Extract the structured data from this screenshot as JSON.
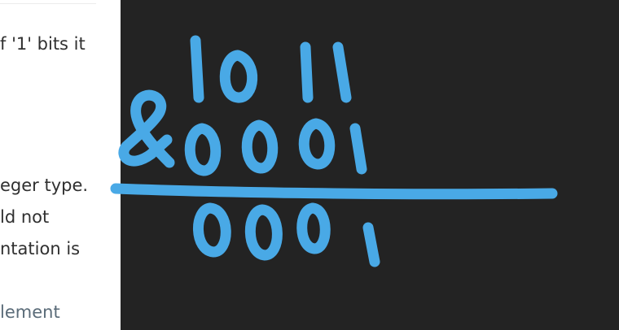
{
  "document": {
    "lines": [
      "f '1' bits it",
      "eger type.",
      "ld not",
      "ntation is",
      "lement"
    ]
  },
  "whiteboard": {
    "operand_a": "1011",
    "operator": "&",
    "operand_b": "0001",
    "result": "0001",
    "ink_color": "#49a9e6",
    "background_color": "#232323"
  }
}
